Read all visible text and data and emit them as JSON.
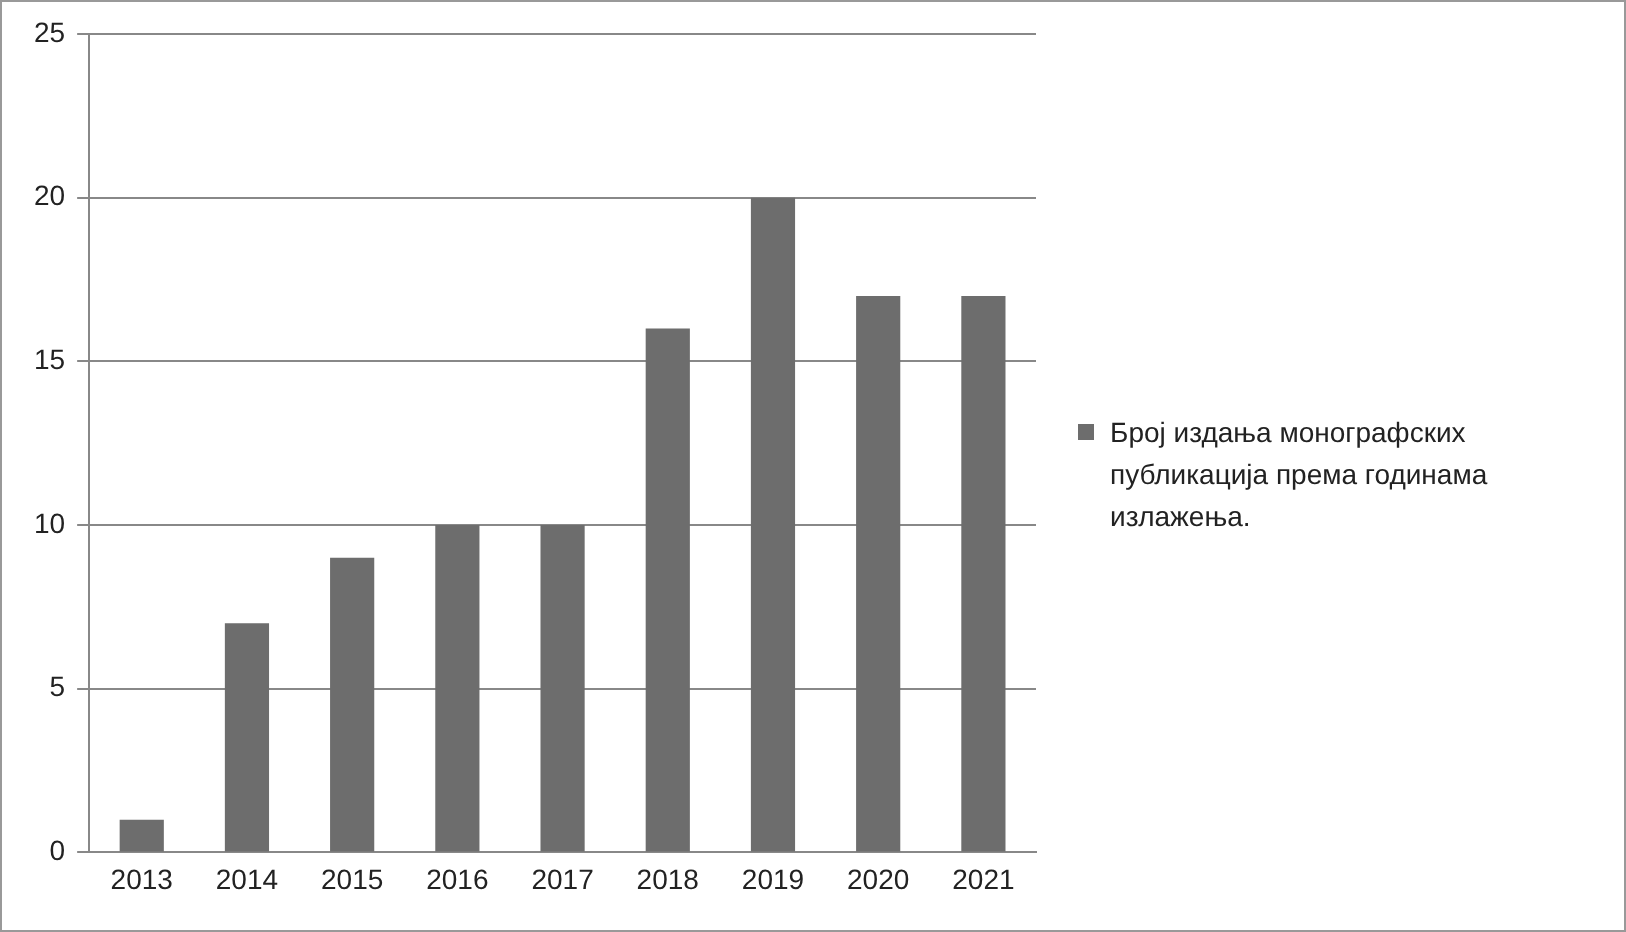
{
  "chart_data": {
    "type": "bar",
    "categories": [
      "2013",
      "2014",
      "2015",
      "2016",
      "2017",
      "2018",
      "2019",
      "2020",
      "2021"
    ],
    "series": [
      {
        "name": "Број издања монографских публикација према годинама излажења.",
        "color": "#6d6d6d",
        "values": [
          1,
          7,
          9,
          10,
          10,
          16,
          20,
          17,
          17
        ]
      }
    ],
    "ylim": [
      0,
      25
    ],
    "yticks": [
      0,
      5,
      10,
      15,
      20,
      25
    ],
    "grid": "y",
    "legend": "right"
  }
}
